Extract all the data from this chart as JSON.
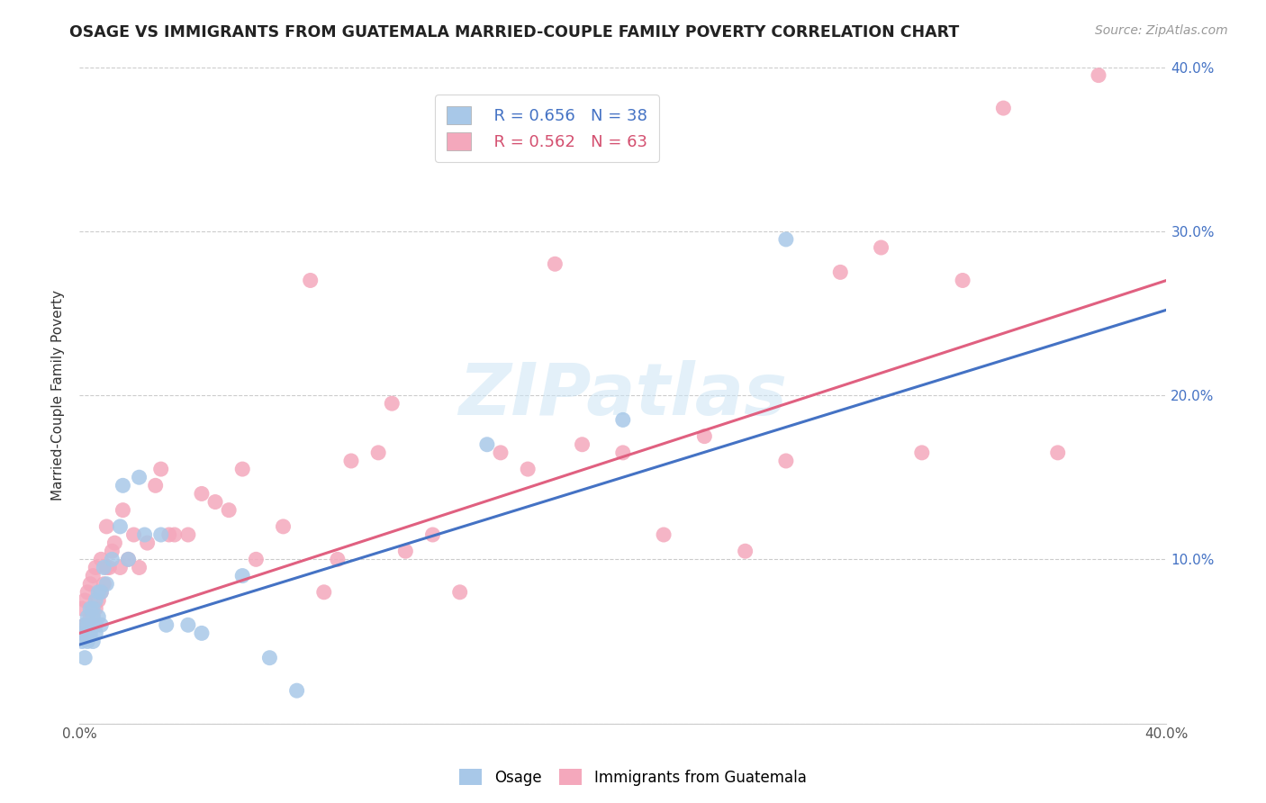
{
  "title": "OSAGE VS IMMIGRANTS FROM GUATEMALA MARRIED-COUPLE FAMILY POVERTY CORRELATION CHART",
  "source": "Source: ZipAtlas.com",
  "ylabel": "Married-Couple Family Poverty",
  "xlim": [
    0.0,
    0.4
  ],
  "ylim": [
    0.0,
    0.4
  ],
  "xtick_vals": [
    0.0,
    0.05,
    0.1,
    0.15,
    0.2,
    0.25,
    0.3,
    0.35,
    0.4
  ],
  "xtick_labels": [
    "0.0%",
    "",
    "",
    "",
    "",
    "",
    "",
    "",
    "40.0%"
  ],
  "ytick_vals": [
    0.0,
    0.1,
    0.2,
    0.3,
    0.4
  ],
  "right_ytick_labels": [
    "",
    "10.0%",
    "20.0%",
    "30.0%",
    "40.0%"
  ],
  "legend_R1": "R = 0.656",
  "legend_N1": "N = 38",
  "legend_R2": "R = 0.562",
  "legend_N2": "N = 63",
  "color_osage": "#a8c8e8",
  "color_guatemala": "#f4a8bc",
  "color_osage_line": "#4472c4",
  "color_guatemala_line": "#e06080",
  "color_text_blue": "#4472c4",
  "color_text_pink": "#d45070",
  "watermark_text": "ZIPatlas",
  "osage_line_x0": 0.0,
  "osage_line_y0": 0.048,
  "osage_line_x1": 0.4,
  "osage_line_y1": 0.252,
  "guat_line_x0": 0.0,
  "guat_line_y0": 0.055,
  "guat_line_x1": 0.4,
  "guat_line_y1": 0.27,
  "osage_x": [
    0.001,
    0.001,
    0.002,
    0.002,
    0.003,
    0.003,
    0.003,
    0.004,
    0.004,
    0.005,
    0.005,
    0.005,
    0.005,
    0.006,
    0.006,
    0.006,
    0.007,
    0.007,
    0.008,
    0.008,
    0.009,
    0.01,
    0.012,
    0.015,
    0.016,
    0.018,
    0.022,
    0.024,
    0.03,
    0.032,
    0.04,
    0.045,
    0.06,
    0.07,
    0.08,
    0.15,
    0.2,
    0.26
  ],
  "osage_y": [
    0.05,
    0.055,
    0.06,
    0.04,
    0.05,
    0.06,
    0.065,
    0.055,
    0.07,
    0.05,
    0.06,
    0.065,
    0.07,
    0.055,
    0.06,
    0.075,
    0.065,
    0.08,
    0.06,
    0.08,
    0.095,
    0.085,
    0.1,
    0.12,
    0.145,
    0.1,
    0.15,
    0.115,
    0.115,
    0.06,
    0.06,
    0.055,
    0.09,
    0.04,
    0.02,
    0.17,
    0.185,
    0.295
  ],
  "guatemala_x": [
    0.001,
    0.001,
    0.002,
    0.002,
    0.003,
    0.003,
    0.004,
    0.004,
    0.005,
    0.005,
    0.006,
    0.006,
    0.007,
    0.008,
    0.008,
    0.009,
    0.01,
    0.01,
    0.011,
    0.012,
    0.013,
    0.015,
    0.016,
    0.018,
    0.02,
    0.022,
    0.025,
    0.028,
    0.03,
    0.033,
    0.035,
    0.04,
    0.045,
    0.05,
    0.055,
    0.06,
    0.065,
    0.075,
    0.085,
    0.09,
    0.095,
    0.1,
    0.11,
    0.115,
    0.12,
    0.13,
    0.14,
    0.155,
    0.165,
    0.175,
    0.185,
    0.2,
    0.215,
    0.23,
    0.245,
    0.26,
    0.28,
    0.295,
    0.31,
    0.325,
    0.34,
    0.36,
    0.375
  ],
  "guatemala_y": [
    0.055,
    0.07,
    0.06,
    0.075,
    0.06,
    0.08,
    0.065,
    0.085,
    0.065,
    0.09,
    0.07,
    0.095,
    0.075,
    0.08,
    0.1,
    0.085,
    0.095,
    0.12,
    0.095,
    0.105,
    0.11,
    0.095,
    0.13,
    0.1,
    0.115,
    0.095,
    0.11,
    0.145,
    0.155,
    0.115,
    0.115,
    0.115,
    0.14,
    0.135,
    0.13,
    0.155,
    0.1,
    0.12,
    0.27,
    0.08,
    0.1,
    0.16,
    0.165,
    0.195,
    0.105,
    0.115,
    0.08,
    0.165,
    0.155,
    0.28,
    0.17,
    0.165,
    0.115,
    0.175,
    0.105,
    0.16,
    0.275,
    0.29,
    0.165,
    0.27,
    0.375,
    0.165,
    0.395
  ]
}
